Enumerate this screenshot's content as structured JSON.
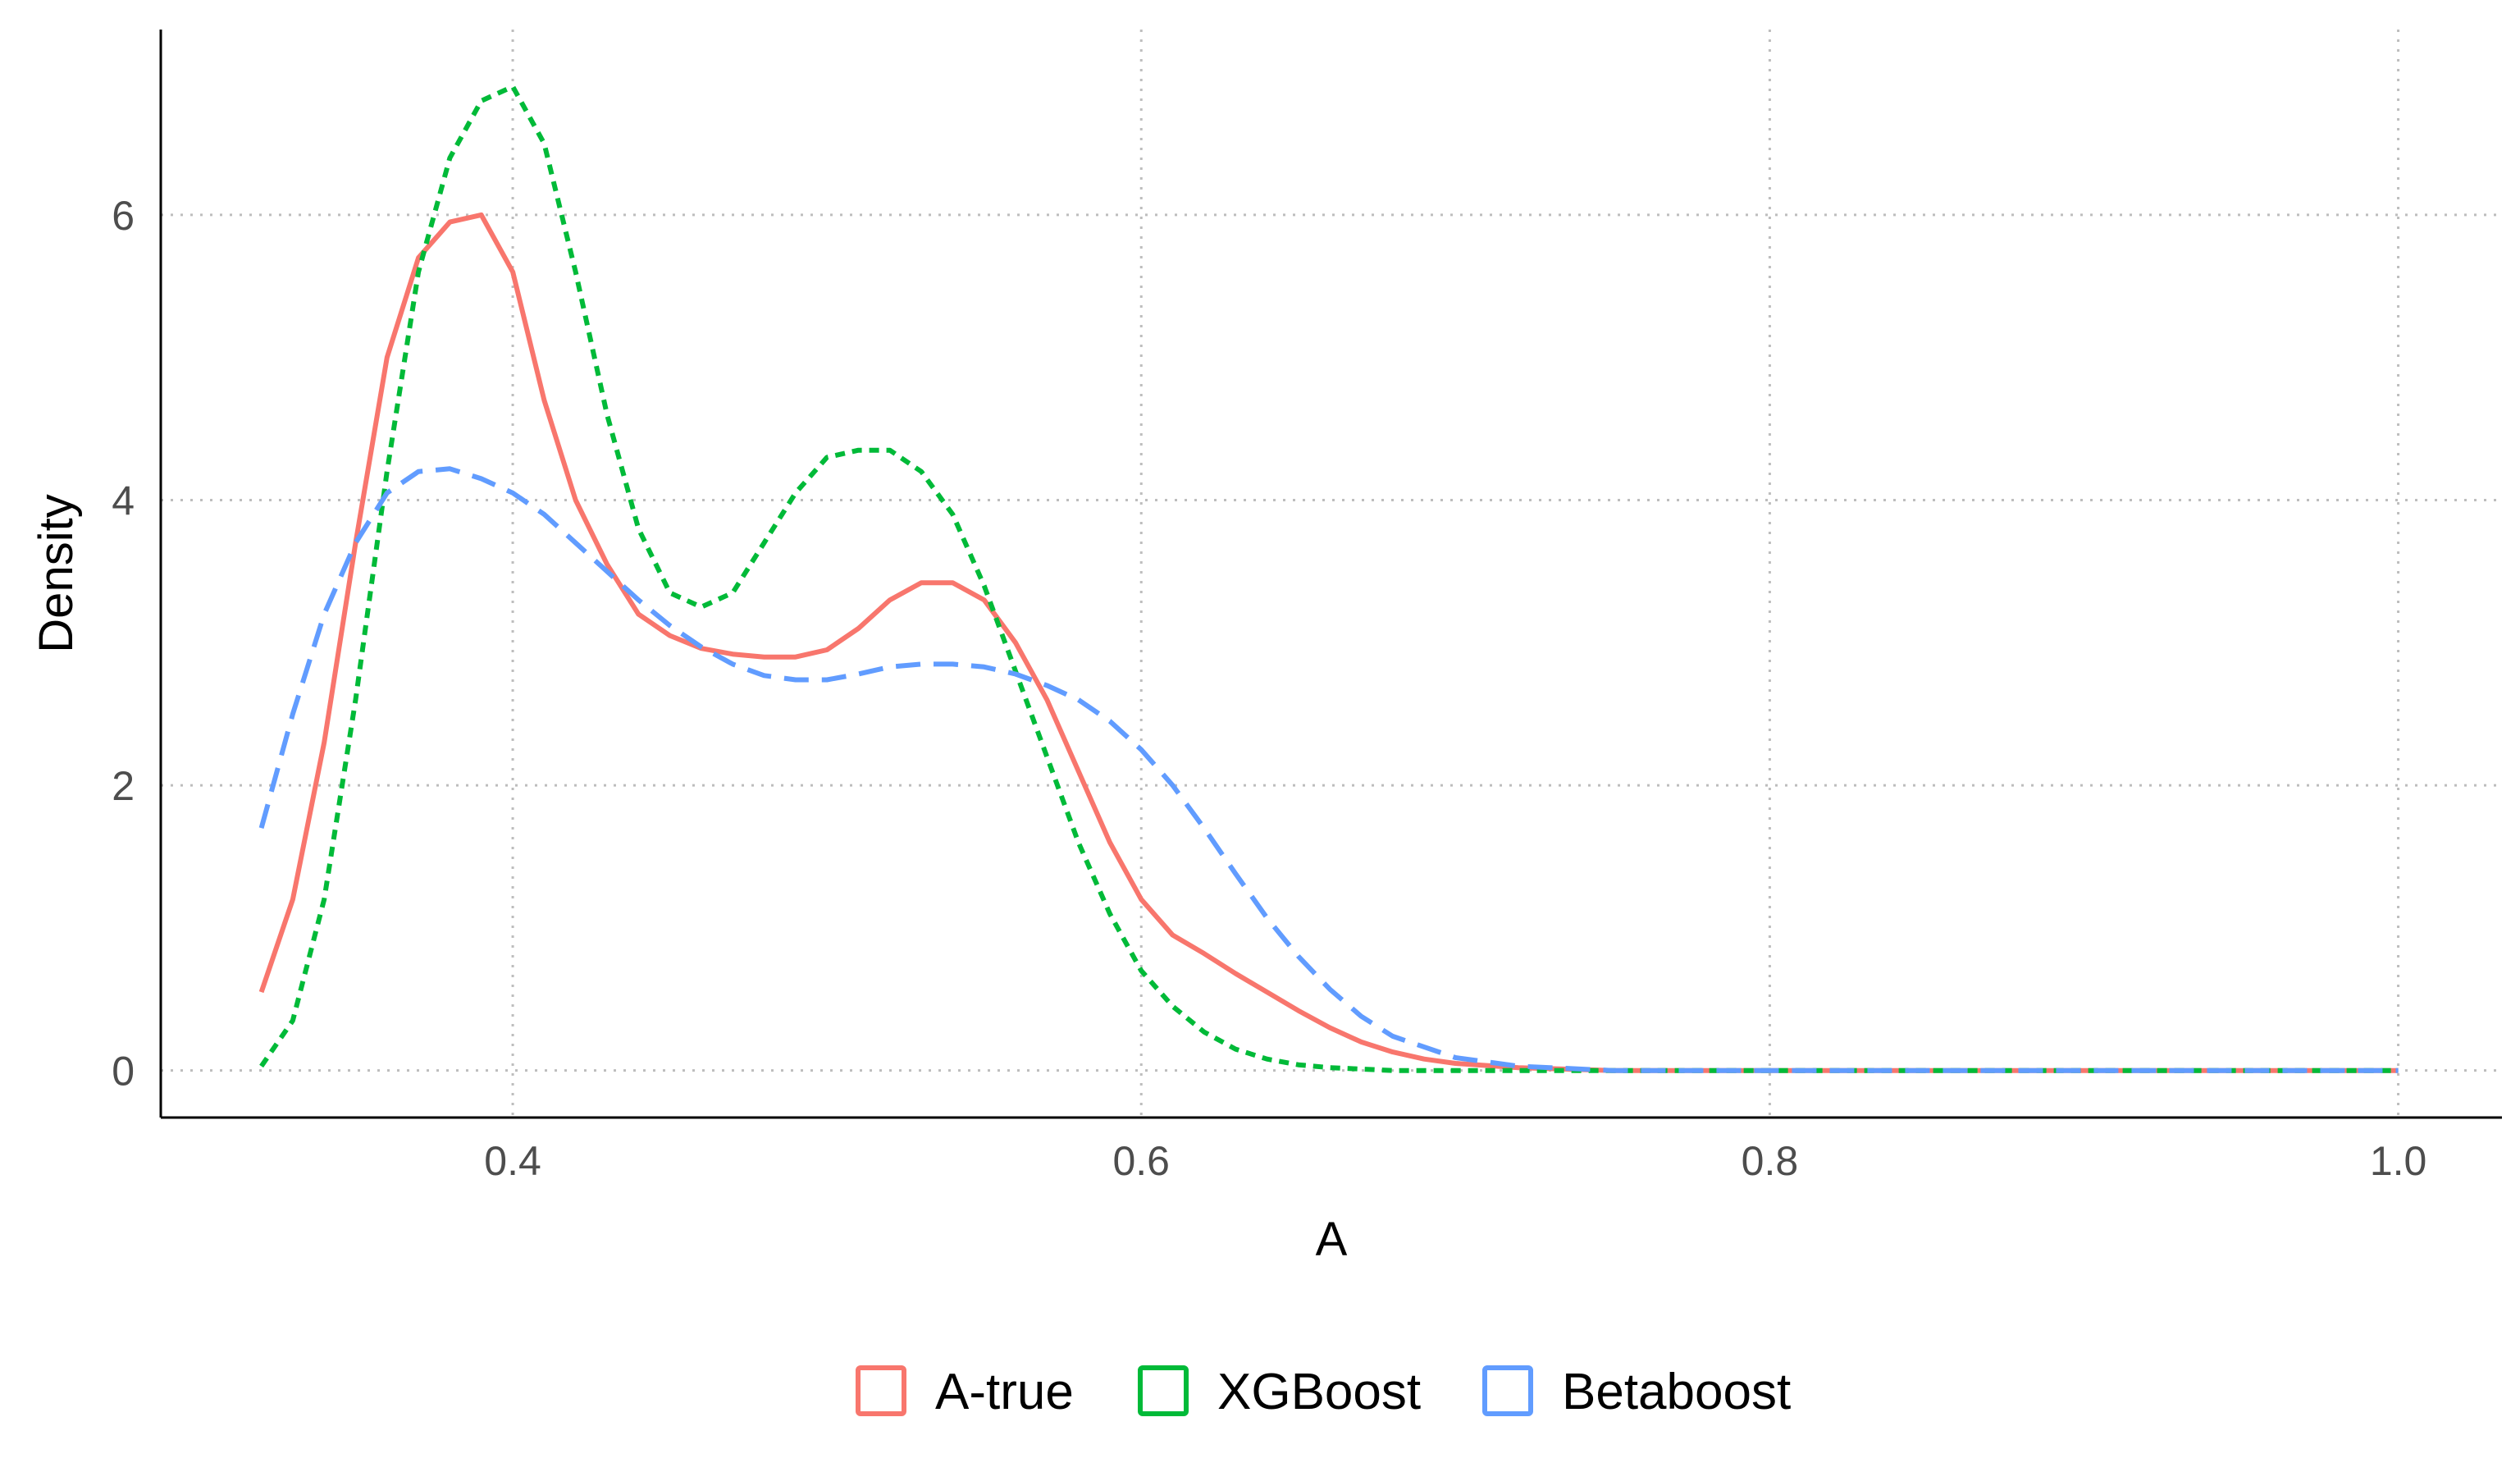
{
  "chart_data": {
    "type": "line",
    "title": "",
    "xlabel": "A",
    "ylabel": "Density",
    "xlim": [
      0.288,
      1.033
    ],
    "ylim": [
      -0.33,
      7.3
    ],
    "x_ticks": [
      0.4,
      0.6,
      0.8,
      1.0
    ],
    "x_tick_labels": [
      "0.4",
      "0.6",
      "0.8",
      "1.0"
    ],
    "y_ticks": [
      0,
      2,
      4,
      6
    ],
    "y_tick_labels": [
      "0",
      "2",
      "4",
      "6"
    ],
    "grid": true,
    "legend_position": "bottom",
    "series": [
      {
        "name": "A-true",
        "color": "#F8766D",
        "dash": "solid",
        "x": [
          0.32,
          0.33,
          0.34,
          0.35,
          0.36,
          0.37,
          0.38,
          0.39,
          0.4,
          0.41,
          0.42,
          0.43,
          0.44,
          0.45,
          0.46,
          0.47,
          0.48,
          0.49,
          0.5,
          0.51,
          0.52,
          0.53,
          0.54,
          0.55,
          0.56,
          0.57,
          0.58,
          0.59,
          0.6,
          0.61,
          0.62,
          0.63,
          0.64,
          0.65,
          0.66,
          0.67,
          0.68,
          0.69,
          0.7,
          0.72,
          0.75,
          0.8,
          0.85,
          0.9,
          0.95,
          1.0
        ],
        "y": [
          0.55,
          1.2,
          2.3,
          3.7,
          5.0,
          5.7,
          5.95,
          6.0,
          5.6,
          4.7,
          4.0,
          3.55,
          3.2,
          3.05,
          2.96,
          2.92,
          2.9,
          2.9,
          2.95,
          3.1,
          3.3,
          3.42,
          3.42,
          3.3,
          3.0,
          2.6,
          2.1,
          1.6,
          1.2,
          0.95,
          0.82,
          0.68,
          0.55,
          0.42,
          0.3,
          0.2,
          0.13,
          0.08,
          0.05,
          0.02,
          0.0,
          0.0,
          0.0,
          0.0,
          0.0,
          0.0
        ]
      },
      {
        "name": "XGBoost",
        "color": "#00BA38",
        "dash": "dotted",
        "x": [
          0.32,
          0.33,
          0.34,
          0.35,
          0.36,
          0.37,
          0.38,
          0.39,
          0.4,
          0.41,
          0.42,
          0.43,
          0.44,
          0.45,
          0.46,
          0.47,
          0.48,
          0.49,
          0.5,
          0.51,
          0.52,
          0.53,
          0.54,
          0.55,
          0.56,
          0.57,
          0.58,
          0.59,
          0.6,
          0.61,
          0.62,
          0.63,
          0.64,
          0.65,
          0.66,
          0.67,
          0.68,
          0.7,
          0.75,
          0.8,
          0.85,
          0.9,
          0.95,
          1.0
        ],
        "y": [
          0.03,
          0.35,
          1.2,
          2.6,
          4.2,
          5.6,
          6.4,
          6.8,
          6.9,
          6.5,
          5.6,
          4.6,
          3.8,
          3.35,
          3.25,
          3.35,
          3.7,
          4.05,
          4.3,
          4.35,
          4.35,
          4.2,
          3.9,
          3.4,
          2.8,
          2.2,
          1.6,
          1.1,
          0.7,
          0.45,
          0.27,
          0.15,
          0.08,
          0.04,
          0.02,
          0.01,
          0.0,
          0.0,
          0.0,
          0.0,
          0.0,
          0.0,
          0.0,
          0.0
        ]
      },
      {
        "name": "Betaboost",
        "color": "#619CFF",
        "dash": "dashed",
        "x": [
          0.32,
          0.33,
          0.34,
          0.35,
          0.36,
          0.37,
          0.38,
          0.39,
          0.4,
          0.41,
          0.42,
          0.43,
          0.44,
          0.45,
          0.46,
          0.47,
          0.48,
          0.49,
          0.5,
          0.51,
          0.52,
          0.53,
          0.54,
          0.55,
          0.56,
          0.57,
          0.58,
          0.59,
          0.6,
          0.61,
          0.62,
          0.63,
          0.64,
          0.65,
          0.66,
          0.67,
          0.68,
          0.7,
          0.72,
          0.75,
          0.8,
          0.85,
          0.9,
          0.95,
          1.0
        ],
        "y": [
          1.7,
          2.5,
          3.2,
          3.7,
          4.05,
          4.2,
          4.22,
          4.15,
          4.05,
          3.9,
          3.7,
          3.5,
          3.3,
          3.12,
          2.97,
          2.85,
          2.77,
          2.74,
          2.74,
          2.78,
          2.83,
          2.85,
          2.85,
          2.83,
          2.78,
          2.7,
          2.6,
          2.45,
          2.25,
          2.0,
          1.7,
          1.38,
          1.07,
          0.8,
          0.57,
          0.38,
          0.24,
          0.09,
          0.03,
          0.0,
          0.0,
          0.0,
          0.0,
          0.0,
          0.0
        ]
      }
    ]
  }
}
